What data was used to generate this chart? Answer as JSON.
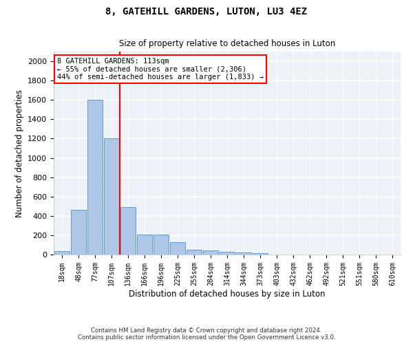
{
  "title1": "8, GATEHILL GARDENS, LUTON, LU3 4EZ",
  "title2": "Size of property relative to detached houses in Luton",
  "xlabel": "Distribution of detached houses by size in Luton",
  "ylabel": "Number of detached properties",
  "footer1": "Contains HM Land Registry data © Crown copyright and database right 2024.",
  "footer2": "Contains public sector information licensed under the Open Government Licence v3.0.",
  "annotation_line1": "8 GATEHILL GARDENS: 113sqm",
  "annotation_line2": "← 55% of detached houses are smaller (2,306)",
  "annotation_line3": "44% of semi-detached houses are larger (1,833) →",
  "bar_labels": [
    "18sqm",
    "48sqm",
    "77sqm",
    "107sqm",
    "136sqm",
    "166sqm",
    "196sqm",
    "225sqm",
    "255sqm",
    "284sqm",
    "314sqm",
    "344sqm",
    "373sqm",
    "403sqm",
    "432sqm",
    "462sqm",
    "492sqm",
    "521sqm",
    "551sqm",
    "580sqm",
    "610sqm"
  ],
  "bar_values": [
    35,
    460,
    1600,
    1200,
    490,
    210,
    210,
    130,
    50,
    40,
    25,
    20,
    12,
    0,
    0,
    0,
    0,
    0,
    0,
    0,
    0
  ],
  "bar_color": "#aec6e8",
  "bar_edge_color": "#5a9fd4",
  "vline_color": "red",
  "vline_x": 3.5,
  "ylim": [
    0,
    2100
  ],
  "yticks": [
    0,
    200,
    400,
    600,
    800,
    1000,
    1200,
    1400,
    1600,
    1800,
    2000
  ],
  "background_color": "#eef2f8",
  "annotation_box_edgecolor": "red",
  "annotation_box_facecolor": "white"
}
